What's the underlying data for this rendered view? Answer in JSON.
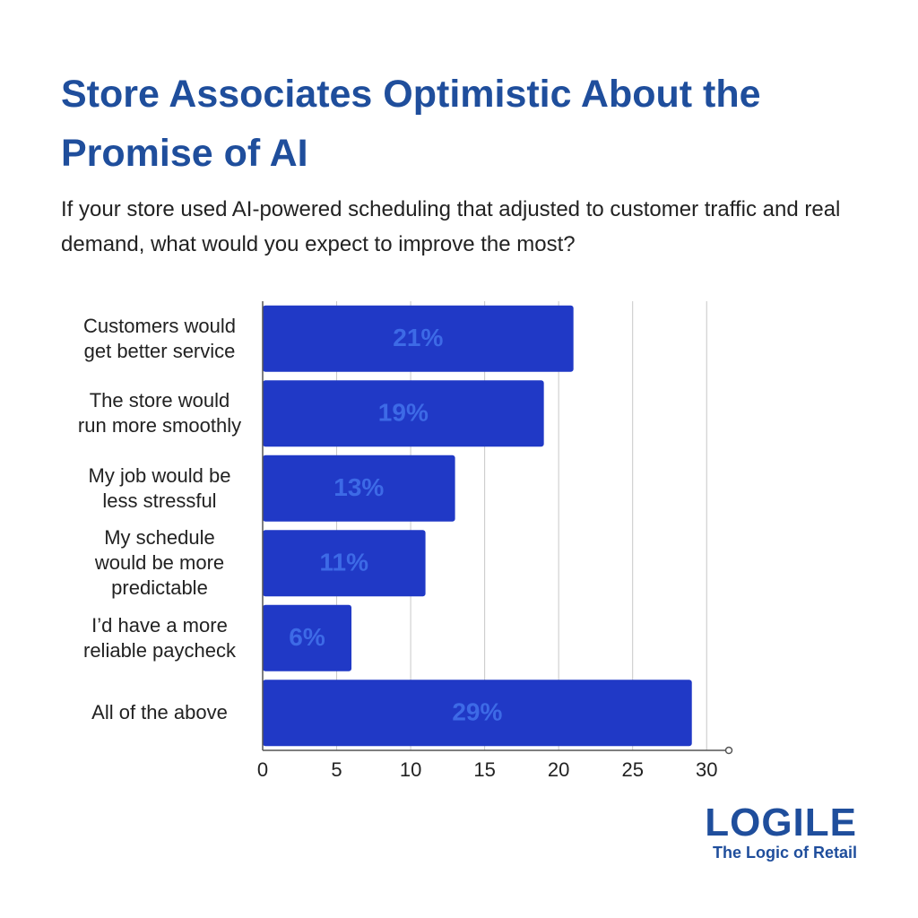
{
  "chart_data": {
    "type": "bar",
    "orientation": "horizontal",
    "title": "Store Associates Optimistic About the Promise of AI",
    "subtitle": "If your store used AI-powered scheduling that adjusted to customer traffic and real demand, what would you expect to improve the most?",
    "categories": [
      "Customers would\nget better service",
      "The store would\nrun more smoothly",
      "My job would be\nless stressful",
      "My schedule\nwould be more\npredictable",
      "I’d have a more\nreliable paycheck",
      "All of the above"
    ],
    "values": [
      21,
      19,
      13,
      11,
      6,
      29
    ],
    "value_labels": [
      "21%",
      "19%",
      "13%",
      "11%",
      "6%",
      "29%"
    ],
    "color": "#2039c6",
    "label_color": "#3d6ae6",
    "xlim": [
      0,
      31.5
    ],
    "xticks": [
      0,
      5,
      10,
      15,
      20,
      25,
      30
    ],
    "grid": true
  },
  "logo": {
    "name": "LOGILE",
    "tagline": "The Logic of Retail"
  }
}
